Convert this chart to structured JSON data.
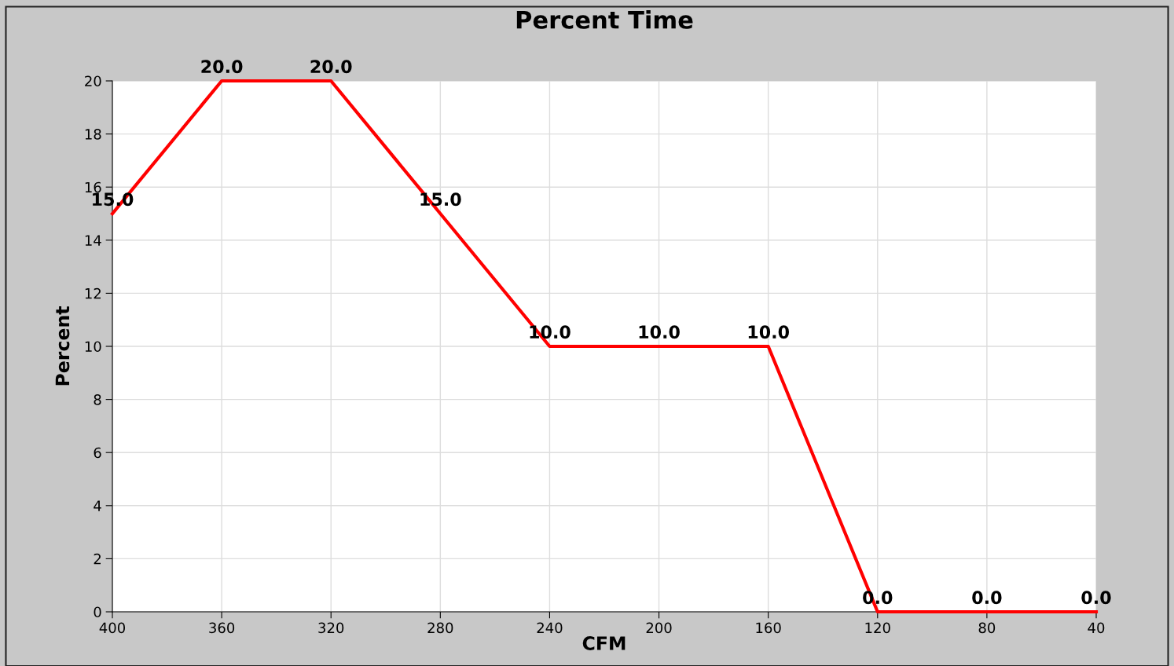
{
  "chart_data": {
    "type": "line",
    "title": "Percent Time",
    "xlabel": "CFM",
    "ylabel": "Percent",
    "x": [
      400,
      360,
      320,
      280,
      240,
      200,
      160,
      120,
      80,
      40
    ],
    "series": [
      {
        "color": "#ff0000",
        "values": [
          15,
          20,
          20,
          15,
          10,
          10,
          10,
          0,
          0,
          0
        ],
        "value_labels": [
          "15.0",
          "20.0",
          "20.0",
          "15.0",
          "10.0",
          "10.0",
          "10.0",
          "0.0",
          "0.0",
          "0.0"
        ]
      }
    ],
    "xlim": [
      400,
      40
    ],
    "xticks": [
      400,
      360,
      320,
      280,
      240,
      200,
      160,
      120,
      80,
      40
    ],
    "ylim": [
      0,
      20
    ],
    "yticks": [
      0,
      2,
      4,
      6,
      8,
      10,
      12,
      14,
      16,
      18,
      20
    ],
    "grid": true,
    "legend": false,
    "marker": "none",
    "line_style": "solid"
  }
}
